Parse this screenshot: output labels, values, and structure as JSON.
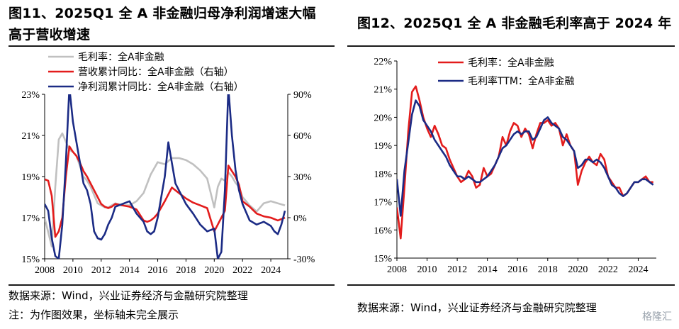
{
  "left": {
    "title_line1": "图11、2025Q1 全 A 非金融归母净利润增速大幅",
    "title_line2": "高于营收增速",
    "source_line1": "数据来源：Wind，兴业证券经济与金融研究院整理",
    "source_line2": "注：为作图效果，坐标轴未完全展示"
  },
  "right": {
    "title": "图12、2025Q1 全 A 非金融毛利率高于 2024 年",
    "source": "数据来源：Wind，兴业证券经济与金融研究院整理"
  },
  "watermark": "格隆汇",
  "chart_data": [
    {
      "type": "line",
      "legend_position": "top-left",
      "grid": false,
      "x_ticks": [
        "2008",
        "2010",
        "2012",
        "2014",
        "2016",
        "2018",
        "2020",
        "2022",
        "2024"
      ],
      "xlim": [
        2008.0,
        2025.2
      ],
      "y_left": {
        "ticks": [
          "15%",
          "17%",
          "19%",
          "21%",
          "23%"
        ],
        "lim": [
          15,
          23
        ]
      },
      "y_right": {
        "ticks": [
          "-30%",
          "0%",
          "30%",
          "60%",
          "90%"
        ],
        "lim": [
          -30,
          90
        ]
      },
      "series": [
        {
          "name": "毛利率：全A非金融",
          "color": "#c0c0c0",
          "axis": "left",
          "x": [
            2008.0,
            2008.25,
            2008.5,
            2008.75,
            2009.0,
            2009.25,
            2009.5,
            2009.75,
            2010.0,
            2010.25,
            2010.5,
            2010.75,
            2011.0,
            2011.25,
            2011.5,
            2011.75,
            2012.0,
            2012.25,
            2012.5,
            2012.75,
            2013.0,
            2013.5,
            2014.0,
            2014.5,
            2015.0,
            2015.5,
            2016.0,
            2016.5,
            2017.0,
            2017.5,
            2018.0,
            2018.5,
            2019.0,
            2019.5,
            2020.0,
            2020.25,
            2020.5,
            2020.75,
            2021.0,
            2021.25,
            2021.5,
            2021.75,
            2022.0,
            2022.5,
            2023.0,
            2023.5,
            2024.0,
            2024.5,
            2025.0
          ],
          "values": [
            17.0,
            16.3,
            15.6,
            18.5,
            20.8,
            21.1,
            20.7,
            20.3,
            20.2,
            20.0,
            19.5,
            19.0,
            18.8,
            18.5,
            18.1,
            17.7,
            17.6,
            17.5,
            17.5,
            17.6,
            17.7,
            17.6,
            17.6,
            17.8,
            18.2,
            19.1,
            19.7,
            19.6,
            19.9,
            19.9,
            19.8,
            19.6,
            19.3,
            18.9,
            17.5,
            18.5,
            18.9,
            18.8,
            19.2,
            19.0,
            18.7,
            18.5,
            18.0,
            17.6,
            17.3,
            17.7,
            17.8,
            17.7,
            17.6
          ]
        },
        {
          "name": "营收累计同比：全A非金融（右轴）",
          "color": "#e31c1c",
          "axis": "right",
          "x": [
            2008.0,
            2008.25,
            2008.5,
            2008.75,
            2009.0,
            2009.25,
            2009.5,
            2009.75,
            2010.0,
            2010.25,
            2010.5,
            2010.75,
            2011.0,
            2011.25,
            2011.5,
            2011.75,
            2012.0,
            2012.25,
            2012.5,
            2012.75,
            2013.0,
            2013.5,
            2014.0,
            2014.5,
            2015.0,
            2015.25,
            2015.5,
            2015.75,
            2016.0,
            2016.5,
            2017.0,
            2017.5,
            2018.0,
            2018.5,
            2019.0,
            2019.5,
            2020.0,
            2020.25,
            2020.5,
            2020.75,
            2021.0,
            2021.25,
            2021.5,
            2021.75,
            2022.0,
            2022.5,
            2023.0,
            2023.5,
            2024.0,
            2024.5,
            2025.0
          ],
          "values": [
            28,
            27,
            16,
            -14,
            -10,
            0,
            30,
            52,
            48,
            45,
            40,
            34,
            30,
            25,
            20,
            15,
            10,
            8,
            7,
            8,
            10,
            9,
            8,
            6,
            -2,
            -3,
            -2,
            0,
            3,
            12,
            22,
            18,
            14,
            11,
            9,
            7,
            -10,
            -5,
            0,
            5,
            38,
            34,
            30,
            24,
            12,
            8,
            3,
            1,
            0,
            -2,
            0
          ]
        },
        {
          "name": "净利润累计同比：全A非金融（右轴）",
          "color": "#1b2b85",
          "axis": "right",
          "x": [
            2008.0,
            2008.25,
            2008.5,
            2008.75,
            2009.0,
            2009.25,
            2009.5,
            2009.75,
            2010.0,
            2010.25,
            2010.5,
            2010.75,
            2011.0,
            2011.25,
            2011.5,
            2011.75,
            2012.0,
            2012.25,
            2012.5,
            2012.75,
            2013.0,
            2013.5,
            2014.0,
            2014.5,
            2015.0,
            2015.25,
            2015.5,
            2015.75,
            2016.0,
            2016.5,
            2016.75,
            2017.0,
            2017.25,
            2017.5,
            2017.75,
            2018.0,
            2018.5,
            2019.0,
            2019.5,
            2020.0,
            2020.25,
            2020.5,
            2020.75,
            2021.0,
            2021.25,
            2021.5,
            2021.75,
            2022.0,
            2022.5,
            2023.0,
            2023.5,
            2024.0,
            2024.25,
            2024.5,
            2024.75,
            2025.0
          ],
          "values": [
            10,
            5,
            -15,
            -28,
            -30,
            -5,
            40,
            95,
            70,
            55,
            40,
            25,
            20,
            10,
            -10,
            -15,
            -16,
            -12,
            -5,
            0,
            8,
            10,
            12,
            3,
            -3,
            -10,
            -12,
            -10,
            0,
            30,
            55,
            40,
            25,
            20,
            15,
            10,
            3,
            -5,
            -10,
            -8,
            -30,
            -25,
            20,
            95,
            60,
            35,
            20,
            10,
            -2,
            -5,
            -3,
            -6,
            -10,
            -12,
            -5,
            5
          ]
        }
      ]
    },
    {
      "type": "line",
      "legend_position": "top-right",
      "grid": false,
      "x_ticks": [
        "2008",
        "2010",
        "2012",
        "2014",
        "2016",
        "2018",
        "2020",
        "2022",
        "2024"
      ],
      "xlim": [
        2008.0,
        2025.2
      ],
      "y_left": {
        "ticks": [
          "15%",
          "16%",
          "17%",
          "18%",
          "19%",
          "20%",
          "21%",
          "22%"
        ],
        "lim": [
          15,
          22
        ]
      },
      "series": [
        {
          "name": "毛利率：全A非金融",
          "color": "#e31c1c",
          "x": [
            2008.0,
            2008.25,
            2008.5,
            2008.75,
            2009.0,
            2009.25,
            2009.5,
            2009.75,
            2010.0,
            2010.25,
            2010.5,
            2010.75,
            2011.0,
            2011.25,
            2011.5,
            2011.75,
            2012.0,
            2012.25,
            2012.5,
            2012.75,
            2013.0,
            2013.25,
            2013.5,
            2013.75,
            2014.0,
            2014.25,
            2014.5,
            2014.75,
            2015.0,
            2015.25,
            2015.5,
            2015.75,
            2016.0,
            2016.25,
            2016.5,
            2016.75,
            2017.0,
            2017.25,
            2017.5,
            2017.75,
            2018.0,
            2018.25,
            2018.5,
            2018.75,
            2019.0,
            2019.25,
            2019.5,
            2019.75,
            2020.0,
            2020.25,
            2020.5,
            2020.75,
            2021.0,
            2021.25,
            2021.5,
            2021.75,
            2022.0,
            2022.25,
            2022.5,
            2022.75,
            2023.0,
            2023.25,
            2023.5,
            2023.75,
            2024.0,
            2024.25,
            2024.5,
            2024.75,
            2025.0
          ],
          "values": [
            16.8,
            15.7,
            17.5,
            19.5,
            20.9,
            21.1,
            20.6,
            20.0,
            19.6,
            19.3,
            19.7,
            19.4,
            19.0,
            18.9,
            18.5,
            18.2,
            17.9,
            17.7,
            17.8,
            18.1,
            17.9,
            17.5,
            17.6,
            18.2,
            17.9,
            18.0,
            18.3,
            18.6,
            19.3,
            19.0,
            19.5,
            19.8,
            19.7,
            19.3,
            19.6,
            19.4,
            18.9,
            19.4,
            19.8,
            19.8,
            19.9,
            19.7,
            19.8,
            19.6,
            19.0,
            19.4,
            19.0,
            18.8,
            17.6,
            18.1,
            18.4,
            18.6,
            18.4,
            18.3,
            18.7,
            18.5,
            17.9,
            17.7,
            17.5,
            17.5,
            17.2,
            17.3,
            17.5,
            17.7,
            17.7,
            17.8,
            17.9,
            17.7,
            17.7
          ]
        },
        {
          "name": "毛利率TTM：全A非金融",
          "color": "#1b2b85",
          "x": [
            2008.0,
            2008.25,
            2008.5,
            2008.75,
            2009.0,
            2009.25,
            2009.5,
            2009.75,
            2010.0,
            2010.25,
            2010.5,
            2010.75,
            2011.0,
            2011.25,
            2011.5,
            2011.75,
            2012.0,
            2012.25,
            2012.5,
            2012.75,
            2013.0,
            2013.25,
            2013.5,
            2013.75,
            2014.0,
            2014.25,
            2014.5,
            2014.75,
            2015.0,
            2015.25,
            2015.5,
            2015.75,
            2016.0,
            2016.25,
            2016.5,
            2016.75,
            2017.0,
            2017.25,
            2017.5,
            2017.75,
            2018.0,
            2018.25,
            2018.5,
            2018.75,
            2019.0,
            2019.25,
            2019.5,
            2019.75,
            2020.0,
            2020.25,
            2020.5,
            2020.75,
            2021.0,
            2021.25,
            2021.5,
            2021.75,
            2022.0,
            2022.25,
            2022.5,
            2022.75,
            2023.0,
            2023.25,
            2023.5,
            2023.75,
            2024.0,
            2024.25,
            2024.5,
            2024.75,
            2025.0
          ],
          "values": [
            17.8,
            16.5,
            18.1,
            19.1,
            20.1,
            20.6,
            20.4,
            19.9,
            19.7,
            19.5,
            19.2,
            19.0,
            18.8,
            18.6,
            18.3,
            18.1,
            17.9,
            17.9,
            17.8,
            17.9,
            17.8,
            17.7,
            17.7,
            17.8,
            17.9,
            18.1,
            18.3,
            18.6,
            18.9,
            19.0,
            19.2,
            19.4,
            19.5,
            19.4,
            19.5,
            19.5,
            19.2,
            19.3,
            19.6,
            19.9,
            20.0,
            19.8,
            19.7,
            19.6,
            19.3,
            19.2,
            19.0,
            18.8,
            18.2,
            18.3,
            18.5,
            18.5,
            18.4,
            18.5,
            18.4,
            18.2,
            17.9,
            17.6,
            17.5,
            17.3,
            17.2,
            17.3,
            17.5,
            17.7,
            17.7,
            17.8,
            17.8,
            17.7,
            17.6
          ]
        }
      ]
    }
  ]
}
